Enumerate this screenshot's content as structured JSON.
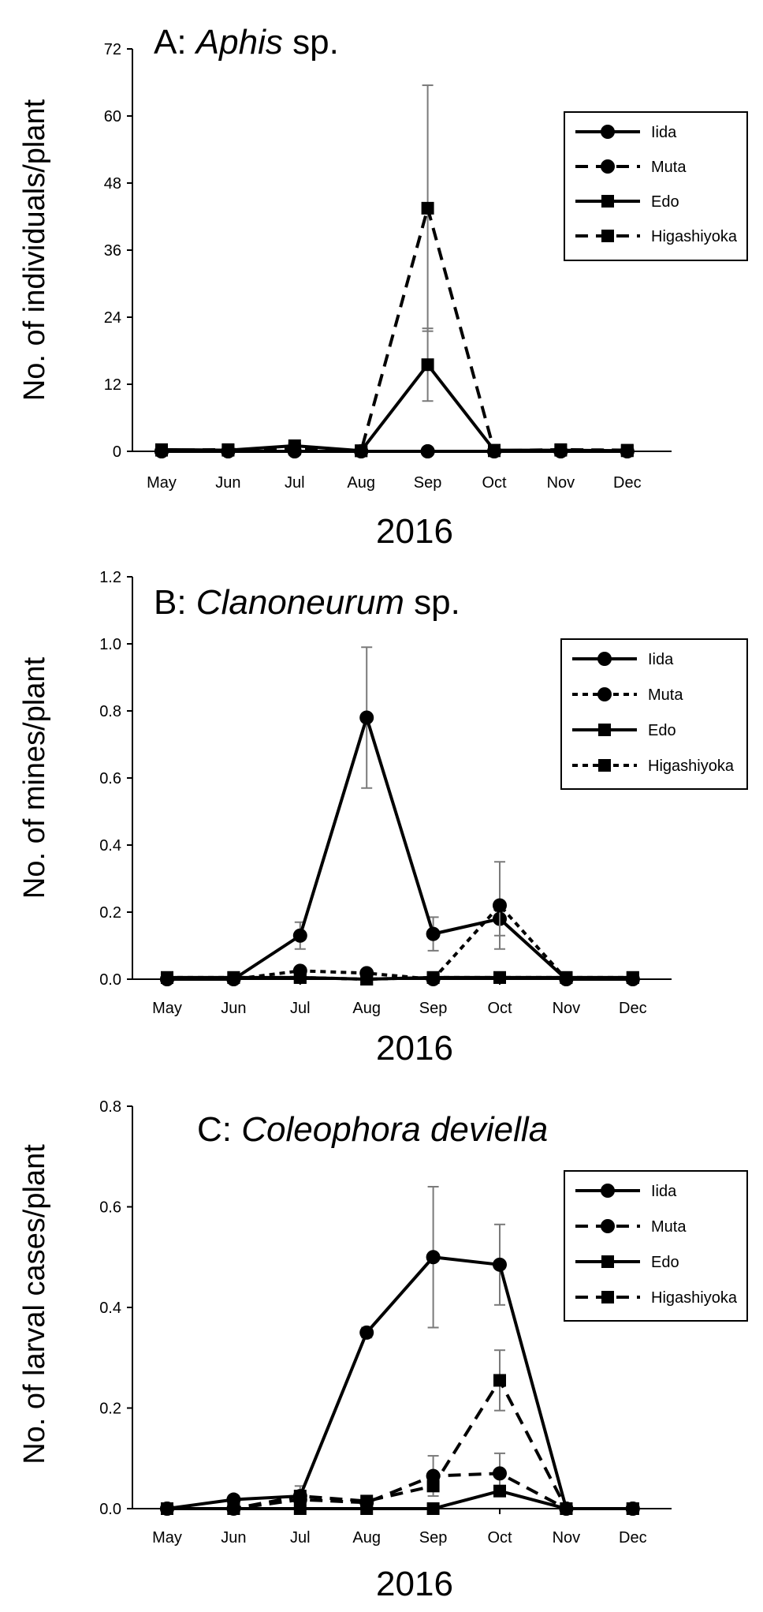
{
  "chart_data": [
    {
      "type": "line",
      "panel_letter": "A:",
      "title_italic": "Aphis",
      "title_suffix": "sp.",
      "ylabel": "No. of individuals/plant",
      "xlabel": "2016",
      "categories": [
        "May",
        "Jun",
        "Jul",
        "Aug",
        "Sep",
        "Oct",
        "Nov",
        "Dec"
      ],
      "ylim": [
        0,
        72
      ],
      "yticks": [
        "0",
        "12",
        "24",
        "36",
        "48",
        "60",
        "72"
      ],
      "legend_position": "top-right",
      "series": [
        {
          "name": "Iida",
          "marker": "circle",
          "line": "solid",
          "values": [
            0,
            0,
            0,
            0,
            0,
            0,
            0,
            0
          ],
          "errors": [
            0,
            0,
            0,
            0,
            0,
            0,
            0,
            0
          ]
        },
        {
          "name": "Muta",
          "marker": "circle",
          "line": "dashed",
          "values": [
            0,
            0,
            0,
            0,
            0,
            0,
            0,
            0
          ],
          "errors": [
            0,
            0,
            0,
            0,
            0,
            0,
            0,
            0
          ]
        },
        {
          "name": "Edo",
          "marker": "square",
          "line": "solid",
          "values": [
            0.3,
            0.2,
            1.0,
            0.1,
            15.5,
            0.2,
            0.2,
            0.1
          ],
          "errors": [
            0,
            0,
            0,
            0,
            6.5,
            0,
            0,
            0
          ]
        },
        {
          "name": "Higashiyoka",
          "marker": "square",
          "line": "dashed",
          "values": [
            0.2,
            0.3,
            0.4,
            0.1,
            43.5,
            0.1,
            0.3,
            0.2
          ],
          "errors": [
            0,
            0,
            0,
            0,
            22,
            0,
            0,
            0
          ]
        }
      ]
    },
    {
      "type": "line",
      "panel_letter": "B:",
      "title_italic": "Clanoneurum",
      "title_suffix": "sp.",
      "ylabel": "No. of mines/plant",
      "xlabel": "2016",
      "categories": [
        "May",
        "Jun",
        "Jul",
        "Aug",
        "Sep",
        "Oct",
        "Nov",
        "Dec"
      ],
      "ylim": [
        0,
        1.2
      ],
      "yticks": [
        "0.0",
        "0.2",
        "0.4",
        "0.6",
        "0.8",
        "1.0",
        "1.2"
      ],
      "legend_position": "top-right",
      "series": [
        {
          "name": "Iida",
          "marker": "circle",
          "line": "solid",
          "values": [
            0,
            0,
            0.13,
            0.78,
            0.135,
            0.18,
            0,
            0
          ],
          "errors": [
            0,
            0,
            0.04,
            0.21,
            0.05,
            0.05,
            0,
            0
          ]
        },
        {
          "name": "Muta",
          "marker": "circle",
          "line": "dotted",
          "values": [
            0,
            0,
            0.025,
            0.018,
            0,
            0.22,
            0,
            0
          ],
          "errors": [
            0,
            0,
            0,
            0,
            0,
            0.13,
            0,
            0
          ]
        },
        {
          "name": "Edo",
          "marker": "square",
          "line": "solid",
          "values": [
            0.005,
            0.005,
            0.005,
            0,
            0.005,
            0.005,
            0.005,
            0.005
          ],
          "errors": [
            0,
            0,
            0,
            0,
            0,
            0,
            0,
            0
          ]
        },
        {
          "name": "Higashiyoka",
          "marker": "square",
          "line": "dotted",
          "values": [
            0.005,
            0.005,
            0.005,
            0,
            0.005,
            0.005,
            0.005,
            0.005
          ],
          "errors": [
            0,
            0,
            0,
            0,
            0,
            0,
            0,
            0
          ]
        }
      ]
    },
    {
      "type": "line",
      "panel_letter": "C:",
      "title_italic": "Coleophora deviella",
      "title_suffix": "",
      "ylabel": "No. of larval cases/plant",
      "xlabel": "2016",
      "categories": [
        "May",
        "Jun",
        "Jul",
        "Aug",
        "Sep",
        "Oct",
        "Nov",
        "Dec"
      ],
      "ylim": [
        0,
        0.8
      ],
      "yticks": [
        "0.0",
        "0.2",
        "0.4",
        "0.6",
        "0.8"
      ],
      "legend_position": "top-right",
      "series": [
        {
          "name": "Iida",
          "marker": "circle",
          "line": "solid",
          "values": [
            0,
            0.018,
            0.025,
            0.35,
            0.5,
            0.485,
            0,
            0
          ],
          "errors": [
            0,
            0,
            0.02,
            0.01,
            0.14,
            0.08,
            0,
            0
          ]
        },
        {
          "name": "Muta",
          "marker": "circle",
          "line": "dashed",
          "values": [
            0,
            0,
            0.018,
            0.012,
            0.065,
            0.07,
            0,
            0
          ],
          "errors": [
            0,
            0,
            0,
            0,
            0.04,
            0.04,
            0,
            0
          ]
        },
        {
          "name": "Edo",
          "marker": "square",
          "line": "solid",
          "values": [
            0,
            0,
            0,
            0,
            0,
            0.035,
            0,
            0
          ],
          "errors": [
            0,
            0,
            0,
            0,
            0,
            0,
            0,
            0
          ]
        },
        {
          "name": "Higashiyoka",
          "marker": "square",
          "line": "dashed",
          "values": [
            0,
            0,
            0.025,
            0.015,
            0.045,
            0.255,
            0,
            0
          ],
          "errors": [
            0,
            0,
            0,
            0,
            0,
            0.06,
            0,
            0
          ]
        }
      ]
    }
  ]
}
